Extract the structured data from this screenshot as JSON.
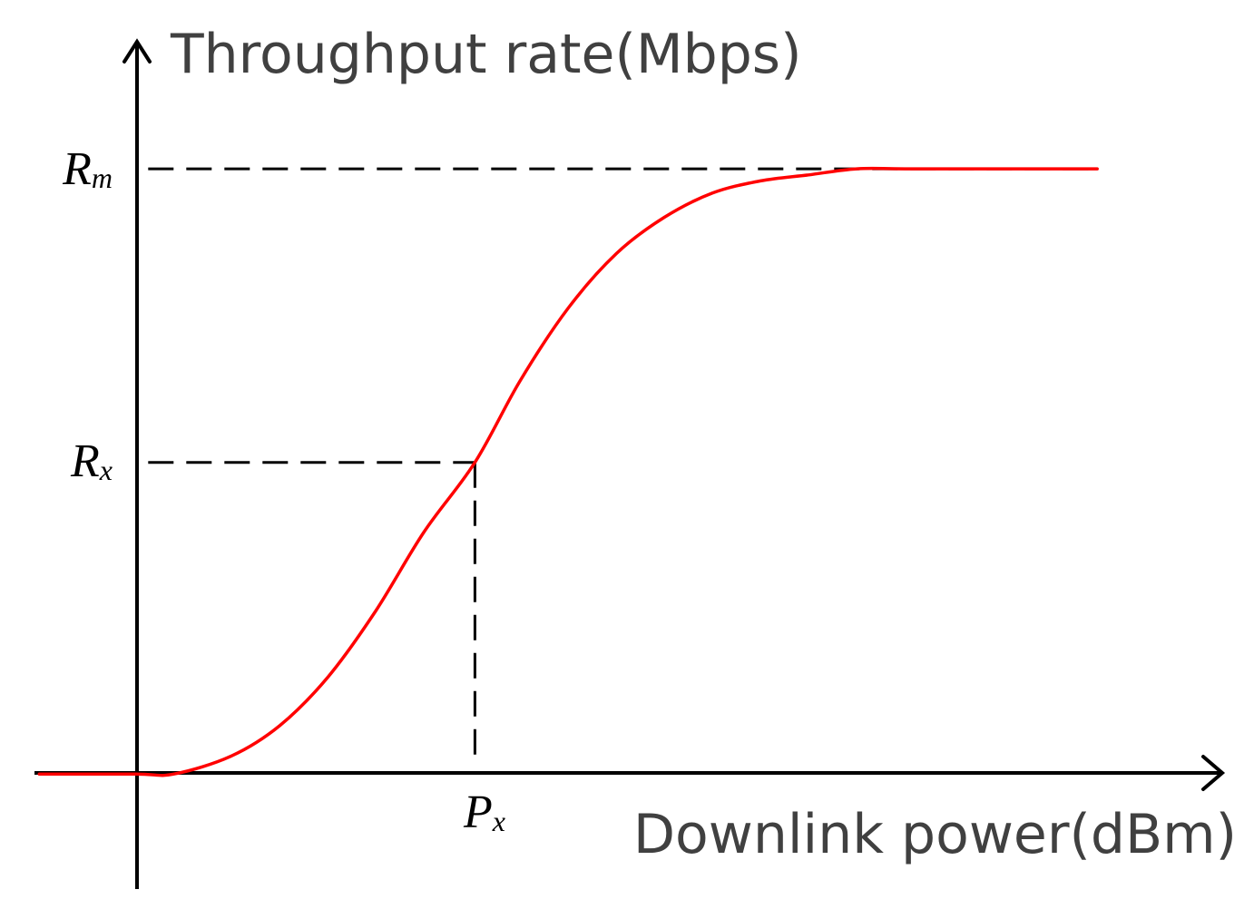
{
  "chart_data": {
    "type": "line",
    "ylabel": "Throughput rate(Mbps)",
    "xlabel": "Downlink power(dBm)",
    "series_color": "#ff0000",
    "y_ticks": [
      {
        "main": "R",
        "sub": "m",
        "value": 1.0
      },
      {
        "main": "R",
        "sub": "x",
        "value": 0.515
      }
    ],
    "x_ticks": [
      {
        "main": "P",
        "sub": "x",
        "value": 0.353
      }
    ],
    "xlim": [
      -0.105,
      1.13
    ],
    "ylim": [
      -0.19,
      1.21
    ],
    "series": [
      {
        "x": [
          -0.1,
          0.0,
          0.04,
          0.1,
          0.15,
          0.2,
          0.25,
          0.3,
          0.353,
          0.4,
          0.45,
          0.5,
          0.55,
          0.6,
          0.65,
          0.7,
          0.75,
          0.8,
          0.9,
          1.0
        ],
        "values": [
          0.0,
          0.0,
          0.0,
          0.03,
          0.08,
          0.16,
          0.27,
          0.4,
          0.515,
          0.65,
          0.77,
          0.86,
          0.92,
          0.96,
          0.98,
          0.99,
          1.0,
          1.0,
          1.0,
          1.0
        ]
      }
    ]
  }
}
